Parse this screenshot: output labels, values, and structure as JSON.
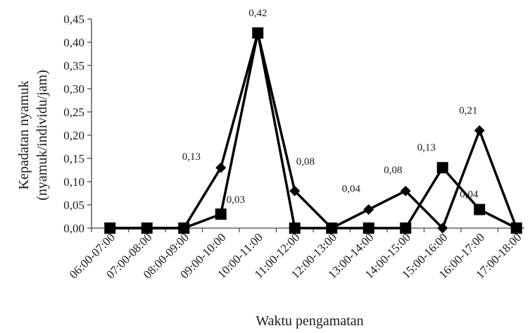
{
  "chart_data": {
    "type": "line",
    "xlabel": "Waktu pengamatan",
    "ylabel_lines": [
      "Kepadatan nyamuk",
      "(nyamuk/individu/jam)"
    ],
    "categories": [
      "06:00-07:00",
      "07:00-08:00",
      "08:00-09:00",
      "09:00-10:00",
      "10:00-11:00",
      "11:00-12:00",
      "12:00-13:00",
      "13:00-14:00",
      "14:00-15:00",
      "15:00-16:00",
      "16:00-17:00",
      "17:00-18:00"
    ],
    "ylim": [
      0,
      0.45
    ],
    "yticks": [
      "0,00",
      "0,05",
      "0,10",
      "0,15",
      "0,20",
      "0,25",
      "0,30",
      "0,35",
      "0,40",
      "0,45"
    ],
    "grid": false,
    "legend": "none",
    "series": [
      {
        "marker": "diamond",
        "color": "#000000",
        "values": [
          0,
          0,
          0,
          0.13,
          0.42,
          0.08,
          0,
          0.04,
          0.08,
          0,
          0.21,
          0
        ]
      },
      {
        "marker": "square",
        "color": "#000000",
        "values": [
          0,
          0,
          0,
          0.03,
          0.42,
          0,
          0,
          0,
          0,
          0.13,
          0.04,
          0
        ]
      }
    ],
    "data_labels": [
      {
        "text": "0,13",
        "series": 0,
        "index": 3
      },
      {
        "text": "0,42",
        "series": 0,
        "index": 4
      },
      {
        "text": "0,08",
        "series": 0,
        "index": 5
      },
      {
        "text": "0,04",
        "series": 0,
        "index": 7
      },
      {
        "text": "0,08",
        "series": 0,
        "index": 8
      },
      {
        "text": "0,21",
        "series": 0,
        "index": 10
      },
      {
        "text": "0,03",
        "series": 1,
        "index": 3
      },
      {
        "text": "0,13",
        "series": 1,
        "index": 9
      },
      {
        "text": "0,04",
        "series": 1,
        "index": 10
      }
    ]
  }
}
